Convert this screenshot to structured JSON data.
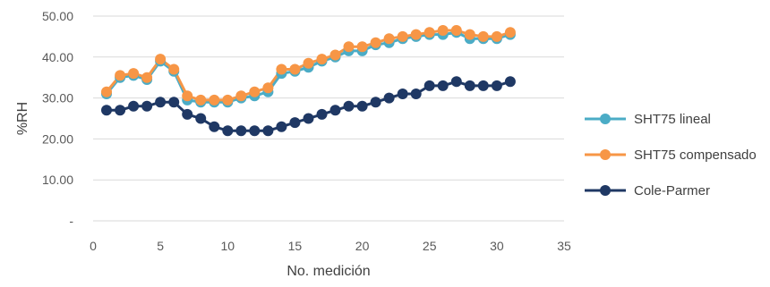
{
  "chart_data": {
    "type": "line",
    "title": "",
    "xlabel": "No. medición",
    "ylabel": "%RH",
    "xlim": [
      0,
      35
    ],
    "ylim": [
      0,
      50
    ],
    "x_ticks": [
      0,
      5,
      10,
      15,
      20,
      25,
      30,
      35
    ],
    "x_tick_labels": [
      "0",
      "5",
      "10",
      "15",
      "20",
      "25",
      "30",
      "35"
    ],
    "y_ticks": [
      0,
      10,
      20,
      30,
      40,
      50
    ],
    "y_tick_labels": [
      "-",
      "10.00",
      "20.00",
      "30.00",
      "40.00",
      "50.00"
    ],
    "grid": "horizontal",
    "legend_position": "right",
    "x": [
      1,
      2,
      3,
      4,
      5,
      6,
      7,
      8,
      9,
      10,
      11,
      12,
      13,
      14,
      15,
      16,
      17,
      18,
      19,
      20,
      21,
      22,
      23,
      24,
      25,
      26,
      27,
      28,
      29,
      30,
      31
    ],
    "series": [
      {
        "name": "SHT75 lineal",
        "color": "#4bacc6",
        "values": [
          31,
          35,
          35.5,
          34.5,
          39,
          36.5,
          29.5,
          29,
          29,
          29,
          30,
          30.5,
          31.5,
          36,
          36.5,
          37.5,
          39,
          40,
          41.5,
          41.5,
          43,
          43.5,
          44.5,
          45,
          45.5,
          45.5,
          46,
          44.5,
          44.5,
          44.5,
          45.5
        ]
      },
      {
        "name": "SHT75 compensado",
        "color": "#f79646",
        "values": [
          31.5,
          35.5,
          36,
          35,
          39.5,
          37,
          30.5,
          29.5,
          29.5,
          29.5,
          30.5,
          31.5,
          32.5,
          37,
          37,
          38.5,
          39.5,
          40.5,
          42.5,
          42.5,
          43.5,
          44.5,
          45,
          45.5,
          46,
          46.5,
          46.5,
          45.5,
          45,
          45,
          46
        ]
      },
      {
        "name": "Cole-Parmer",
        "color": "#1f3864",
        "values": [
          27,
          27,
          28,
          28,
          29,
          29,
          26,
          25,
          23,
          22,
          22,
          22,
          22,
          23,
          24,
          25,
          26,
          27,
          28,
          28,
          29,
          30,
          31,
          31,
          33,
          33,
          34,
          33,
          33,
          33,
          34
        ]
      }
    ]
  }
}
